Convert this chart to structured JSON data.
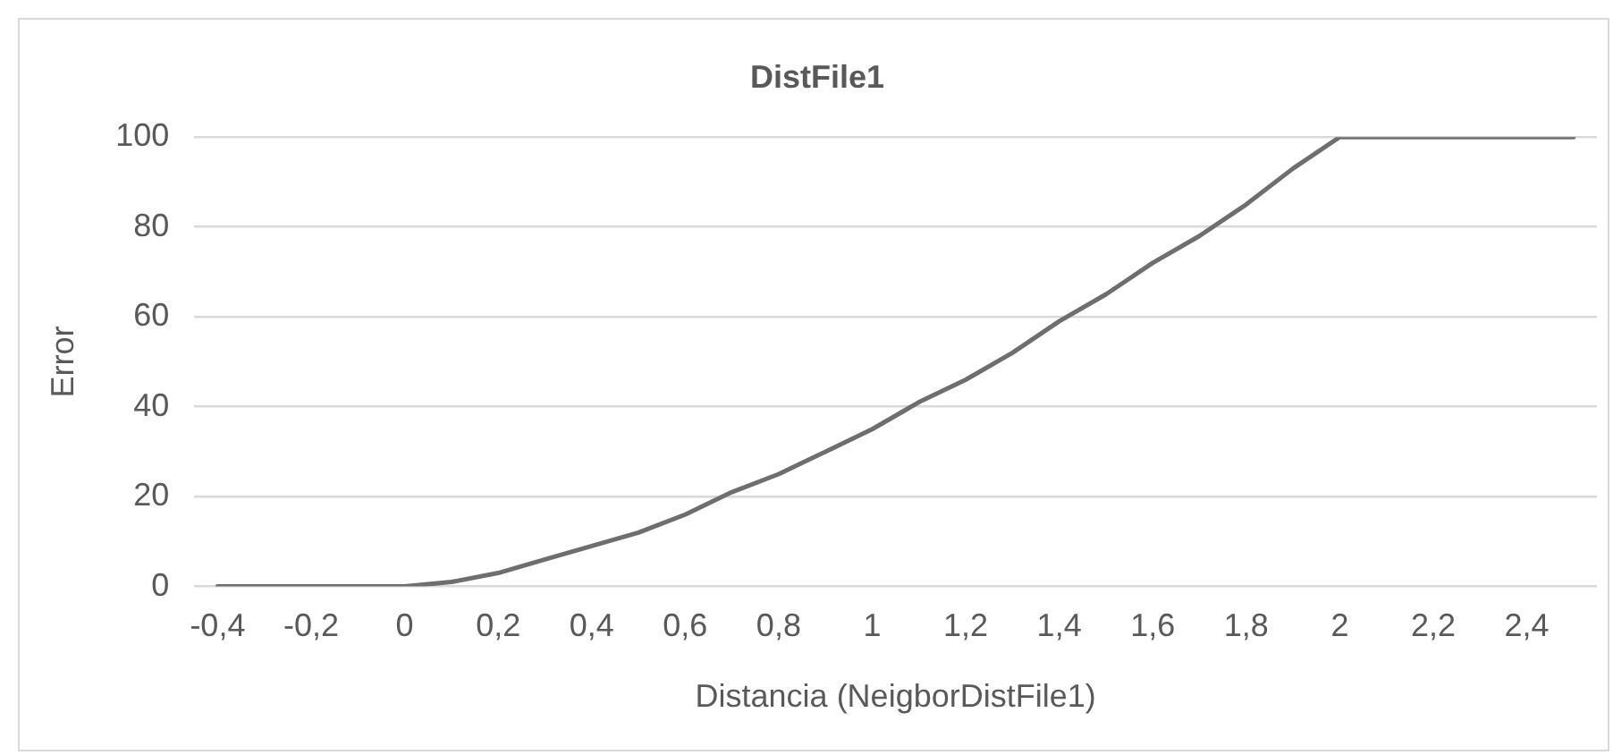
{
  "chart_data": {
    "type": "line",
    "title": "DistFile1",
    "xlabel": "Distancia (NeigborDistFile1)",
    "ylabel": "Error",
    "categories": [
      "-0,4",
      null,
      "-0,2",
      null,
      "0",
      null,
      "0,2",
      null,
      "0,4",
      null,
      "0,6",
      null,
      "0,8",
      null,
      "1",
      null,
      "1,2",
      null,
      "1,4",
      null,
      "1,6",
      null,
      "1,8",
      null,
      "2",
      null,
      "2,2",
      null,
      "2,4",
      null
    ],
    "series": [
      {
        "color": "#6e6e6e",
        "values": [
          0,
          0,
          0,
          0,
          0,
          1,
          3,
          6,
          9,
          12,
          16,
          21,
          25,
          30,
          35,
          41,
          46,
          52,
          59,
          65,
          72,
          78,
          85,
          93,
          100,
          100,
          100,
          100,
          100,
          100
        ]
      }
    ],
    "ylim": [
      0,
      100
    ],
    "yticks": [
      0,
      20,
      40,
      60,
      80,
      100
    ],
    "grid": "y",
    "legend": false,
    "marker": "none",
    "line_style": "solid"
  }
}
